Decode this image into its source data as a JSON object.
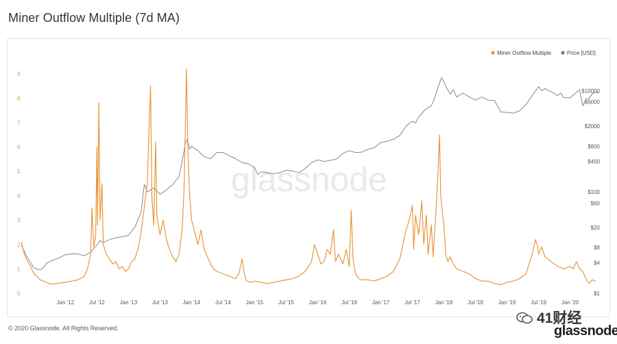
{
  "page": {
    "title": "Miner Outflow Multiple (7d MA)",
    "copyright": "© 2020 Glassnode. All Rights Reserved.",
    "watermark": "glassnode",
    "brand": "glassnode",
    "wechat_label": "41财经"
  },
  "chart_data": {
    "type": "line",
    "title": "Miner Outflow Multiple (7d MA)",
    "legend": {
      "placement": "top-right",
      "entries": [
        "Miner Outflow Multiple",
        "Price [USD]"
      ]
    },
    "grid": false,
    "x_ticks": [
      "Jan '12",
      "Jul '12",
      "Jan '13",
      "Jul '13",
      "Jan '14",
      "Jul '14",
      "Jan '15",
      "Jul '15",
      "Jan '16",
      "Jul '16",
      "Jan '17",
      "Jul '17",
      "Jan '18",
      "Jul '18",
      "Jan '19",
      "Jul '19",
      "Jan '20"
    ],
    "x_range": [
      2011.3,
      2020.45
    ],
    "y_left": {
      "ticks": [
        0,
        1,
        2,
        3,
        4,
        5,
        6,
        7,
        8,
        9
      ],
      "range": [
        0,
        9.3
      ]
    },
    "y_right": {
      "scale": "log",
      "ticks": [
        1,
        4,
        8,
        20,
        60,
        100,
        400,
        800,
        2000,
        6000,
        10000
      ],
      "tick_labels": [
        "$1",
        "$4",
        "$8",
        "$20",
        "$60",
        "$100",
        "$400",
        "$800",
        "$2000",
        "$6000",
        "$10000"
      ]
    },
    "series": [
      {
        "name": "Miner Outflow Multiple",
        "color": "#e8963a",
        "axis": "left",
        "points": [
          [
            2011.3,
            2.1
          ],
          [
            2011.35,
            1.6
          ],
          [
            2011.4,
            1.3
          ],
          [
            2011.45,
            1.1
          ],
          [
            2011.5,
            0.8
          ],
          [
            2011.55,
            0.7
          ],
          [
            2011.6,
            0.55
          ],
          [
            2011.65,
            0.5
          ],
          [
            2011.7,
            0.45
          ],
          [
            2011.75,
            0.4
          ],
          [
            2011.8,
            0.38
          ],
          [
            2011.9,
            0.42
          ],
          [
            2012.0,
            0.45
          ],
          [
            2012.1,
            0.5
          ],
          [
            2012.2,
            0.55
          ],
          [
            2012.3,
            0.7
          ],
          [
            2012.35,
            1.0
          ],
          [
            2012.4,
            1.6
          ],
          [
            2012.42,
            3.5
          ],
          [
            2012.45,
            1.9
          ],
          [
            2012.48,
            2.4
          ],
          [
            2012.5,
            6.0
          ],
          [
            2012.51,
            2.8
          ],
          [
            2012.53,
            7.8
          ],
          [
            2012.55,
            3.0
          ],
          [
            2012.58,
            4.5
          ],
          [
            2012.6,
            2.0
          ],
          [
            2012.65,
            1.6
          ],
          [
            2012.7,
            1.4
          ],
          [
            2012.75,
            1.2
          ],
          [
            2012.8,
            1.3
          ],
          [
            2012.85,
            1.0
          ],
          [
            2012.9,
            1.1
          ],
          [
            2012.95,
            0.9
          ],
          [
            2013.0,
            1.0
          ],
          [
            2013.05,
            1.3
          ],
          [
            2013.1,
            1.4
          ],
          [
            2013.15,
            1.8
          ],
          [
            2013.2,
            2.5
          ],
          [
            2013.25,
            3.5
          ],
          [
            2013.3,
            4.6
          ],
          [
            2013.33,
            7.0
          ],
          [
            2013.35,
            8.5
          ],
          [
            2013.37,
            4.0
          ],
          [
            2013.4,
            2.8
          ],
          [
            2013.43,
            6.2
          ],
          [
            2013.45,
            3.2
          ],
          [
            2013.5,
            2.4
          ],
          [
            2013.55,
            3.0
          ],
          [
            2013.6,
            2.2
          ],
          [
            2013.65,
            1.8
          ],
          [
            2013.7,
            1.5
          ],
          [
            2013.75,
            1.3
          ],
          [
            2013.8,
            1.6
          ],
          [
            2013.85,
            2.6
          ],
          [
            2013.88,
            4.2
          ],
          [
            2013.9,
            6.8
          ],
          [
            2013.92,
            9.2
          ],
          [
            2013.94,
            6.0
          ],
          [
            2013.97,
            4.0
          ],
          [
            2014.0,
            3.0
          ],
          [
            2014.05,
            2.5
          ],
          [
            2014.1,
            2.0
          ],
          [
            2014.15,
            2.6
          ],
          [
            2014.2,
            1.8
          ],
          [
            2014.25,
            1.5
          ],
          [
            2014.3,
            1.2
          ],
          [
            2014.35,
            1.0
          ],
          [
            2014.4,
            0.9
          ],
          [
            2014.5,
            0.8
          ],
          [
            2014.6,
            0.7
          ],
          [
            2014.7,
            0.6
          ],
          [
            2014.75,
            0.8
          ],
          [
            2014.8,
            1.4
          ],
          [
            2014.83,
            0.9
          ],
          [
            2014.87,
            0.5
          ],
          [
            2014.95,
            0.45
          ],
          [
            2015.0,
            0.5
          ],
          [
            2015.1,
            0.45
          ],
          [
            2015.2,
            0.4
          ],
          [
            2015.3,
            0.45
          ],
          [
            2015.4,
            0.5
          ],
          [
            2015.5,
            0.55
          ],
          [
            2015.6,
            0.6
          ],
          [
            2015.7,
            0.7
          ],
          [
            2015.8,
            0.9
          ],
          [
            2015.9,
            1.3
          ],
          [
            2015.95,
            2.0
          ],
          [
            2016.0,
            1.6
          ],
          [
            2016.05,
            1.2
          ],
          [
            2016.1,
            1.3
          ],
          [
            2016.15,
            1.8
          ],
          [
            2016.2,
            1.6
          ],
          [
            2016.25,
            2.6
          ],
          [
            2016.28,
            1.3
          ],
          [
            2016.33,
            1.6
          ],
          [
            2016.4,
            1.2
          ],
          [
            2016.45,
            1.8
          ],
          [
            2016.5,
            1.1
          ],
          [
            2016.53,
            3.4
          ],
          [
            2016.56,
            1.4
          ],
          [
            2016.6,
            0.8
          ],
          [
            2016.65,
            0.6
          ],
          [
            2016.7,
            0.55
          ],
          [
            2016.8,
            0.55
          ],
          [
            2016.9,
            0.5
          ],
          [
            2017.0,
            0.6
          ],
          [
            2017.1,
            0.7
          ],
          [
            2017.2,
            0.9
          ],
          [
            2017.3,
            1.4
          ],
          [
            2017.35,
            2.0
          ],
          [
            2017.4,
            2.6
          ],
          [
            2017.45,
            3.0
          ],
          [
            2017.5,
            3.6
          ],
          [
            2017.52,
            1.8
          ],
          [
            2017.55,
            3.2
          ],
          [
            2017.6,
            2.4
          ],
          [
            2017.65,
            3.8
          ],
          [
            2017.68,
            2.0
          ],
          [
            2017.72,
            3.2
          ],
          [
            2017.75,
            1.6
          ],
          [
            2017.8,
            2.8
          ],
          [
            2017.83,
            1.5
          ],
          [
            2017.87,
            3.2
          ],
          [
            2017.9,
            4.6
          ],
          [
            2017.93,
            6.5
          ],
          [
            2017.95,
            4.0
          ],
          [
            2017.98,
            3.2
          ],
          [
            2018.0,
            2.8
          ],
          [
            2018.03,
            1.6
          ],
          [
            2018.06,
            1.3
          ],
          [
            2018.1,
            1.5
          ],
          [
            2018.15,
            1.2
          ],
          [
            2018.2,
            1.0
          ],
          [
            2018.3,
            0.9
          ],
          [
            2018.4,
            0.8
          ],
          [
            2018.5,
            0.6
          ],
          [
            2018.6,
            0.5
          ],
          [
            2018.7,
            0.5
          ],
          [
            2018.8,
            0.4
          ],
          [
            2018.9,
            0.35
          ],
          [
            2019.0,
            0.45
          ],
          [
            2019.1,
            0.5
          ],
          [
            2019.2,
            0.6
          ],
          [
            2019.3,
            0.8
          ],
          [
            2019.35,
            1.2
          ],
          [
            2019.4,
            1.6
          ],
          [
            2019.45,
            2.2
          ],
          [
            2019.48,
            2.0
          ],
          [
            2019.5,
            1.6
          ],
          [
            2019.55,
            1.9
          ],
          [
            2019.6,
            1.5
          ],
          [
            2019.65,
            1.4
          ],
          [
            2019.7,
            1.3
          ],
          [
            2019.8,
            1.1
          ],
          [
            2019.9,
            1.0
          ],
          [
            2020.0,
            1.1
          ],
          [
            2020.05,
            1.0
          ],
          [
            2020.1,
            1.3
          ],
          [
            2020.15,
            1.0
          ],
          [
            2020.2,
            0.9
          ],
          [
            2020.25,
            0.6
          ],
          [
            2020.3,
            0.4
          ],
          [
            2020.35,
            0.55
          ],
          [
            2020.4,
            0.5
          ]
        ]
      },
      {
        "name": "Price [USD]",
        "color": "#7a7a7a",
        "axis": "right",
        "points": [
          [
            2011.3,
            9.0
          ],
          [
            2011.4,
            5.0
          ],
          [
            2011.5,
            3.2
          ],
          [
            2011.55,
            3.0
          ],
          [
            2011.6,
            2.9
          ],
          [
            2011.65,
            3.2
          ],
          [
            2011.7,
            3.9
          ],
          [
            2011.8,
            4.5
          ],
          [
            2011.9,
            5.0
          ],
          [
            2012.0,
            5.8
          ],
          [
            2012.1,
            6.0
          ],
          [
            2012.2,
            6.0
          ],
          [
            2012.3,
            5.5
          ],
          [
            2012.4,
            6.5
          ],
          [
            2012.5,
            9.0
          ],
          [
            2012.55,
            11.0
          ],
          [
            2012.6,
            10.0
          ],
          [
            2012.7,
            11.5
          ],
          [
            2012.8,
            12.5
          ],
          [
            2012.9,
            13.0
          ],
          [
            2013.0,
            14.0
          ],
          [
            2013.1,
            20.0
          ],
          [
            2013.2,
            40.0
          ],
          [
            2013.25,
            140.0
          ],
          [
            2013.3,
            100.0
          ],
          [
            2013.4,
            120.0
          ],
          [
            2013.5,
            90.0
          ],
          [
            2013.6,
            110.0
          ],
          [
            2013.7,
            140.0
          ],
          [
            2013.8,
            200.0
          ],
          [
            2013.85,
            400.0
          ],
          [
            2013.9,
            900.0
          ],
          [
            2013.93,
            1100.0
          ],
          [
            2013.97,
            700.0
          ],
          [
            2014.0,
            800.0
          ],
          [
            2014.1,
            650.0
          ],
          [
            2014.2,
            500.0
          ],
          [
            2014.3,
            450.0
          ],
          [
            2014.4,
            600.0
          ],
          [
            2014.5,
            600.0
          ],
          [
            2014.6,
            520.0
          ],
          [
            2014.7,
            450.0
          ],
          [
            2014.8,
            380.0
          ],
          [
            2014.9,
            360.0
          ],
          [
            2015.0,
            300.0
          ],
          [
            2015.05,
            220.0
          ],
          [
            2015.1,
            250.0
          ],
          [
            2015.2,
            240.0
          ],
          [
            2015.3,
            230.0
          ],
          [
            2015.4,
            240.0
          ],
          [
            2015.5,
            270.0
          ],
          [
            2015.6,
            260.0
          ],
          [
            2015.7,
            240.0
          ],
          [
            2015.8,
            290.0
          ],
          [
            2015.9,
            380.0
          ],
          [
            2016.0,
            430.0
          ],
          [
            2016.1,
            400.0
          ],
          [
            2016.2,
            420.0
          ],
          [
            2016.3,
            450.0
          ],
          [
            2016.4,
            580.0
          ],
          [
            2016.5,
            650.0
          ],
          [
            2016.6,
            600.0
          ],
          [
            2016.7,
            610.0
          ],
          [
            2016.8,
            700.0
          ],
          [
            2016.9,
            750.0
          ],
          [
            2017.0,
            950.0
          ],
          [
            2017.1,
            1000.0
          ],
          [
            2017.2,
            1100.0
          ],
          [
            2017.3,
            1300.0
          ],
          [
            2017.4,
            2000.0
          ],
          [
            2017.5,
            2500.0
          ],
          [
            2017.55,
            2300.0
          ],
          [
            2017.6,
            3000.0
          ],
          [
            2017.7,
            4200.0
          ],
          [
            2017.8,
            5000.0
          ],
          [
            2017.85,
            7000.0
          ],
          [
            2017.9,
            11000.0
          ],
          [
            2017.96,
            18000.0
          ],
          [
            2018.0,
            15000.0
          ],
          [
            2018.05,
            11000.0
          ],
          [
            2018.1,
            8500.0
          ],
          [
            2018.15,
            10500.0
          ],
          [
            2018.2,
            7500.0
          ],
          [
            2018.3,
            9000.0
          ],
          [
            2018.4,
            7500.0
          ],
          [
            2018.5,
            6500.0
          ],
          [
            2018.6,
            7500.0
          ],
          [
            2018.7,
            6500.0
          ],
          [
            2018.8,
            6400.0
          ],
          [
            2018.85,
            5000.0
          ],
          [
            2018.9,
            3800.0
          ],
          [
            2019.0,
            3700.0
          ],
          [
            2019.1,
            3600.0
          ],
          [
            2019.2,
            4000.0
          ],
          [
            2019.3,
            5300.0
          ],
          [
            2019.4,
            8000.0
          ],
          [
            2019.5,
            12000.0
          ],
          [
            2019.55,
            10000.0
          ],
          [
            2019.6,
            11000.0
          ],
          [
            2019.7,
            9500.0
          ],
          [
            2019.8,
            8000.0
          ],
          [
            2019.85,
            9000.0
          ],
          [
            2019.9,
            7300.0
          ],
          [
            2020.0,
            7200.0
          ],
          [
            2020.1,
            9300.0
          ],
          [
            2020.15,
            10300.0
          ],
          [
            2020.2,
            5000.0
          ],
          [
            2020.25,
            6800.0
          ],
          [
            2020.3,
            7000.0
          ],
          [
            2020.35,
            8700.0
          ],
          [
            2020.4,
            9200.0
          ],
          [
            2020.45,
            9000.0
          ]
        ]
      }
    ]
  }
}
